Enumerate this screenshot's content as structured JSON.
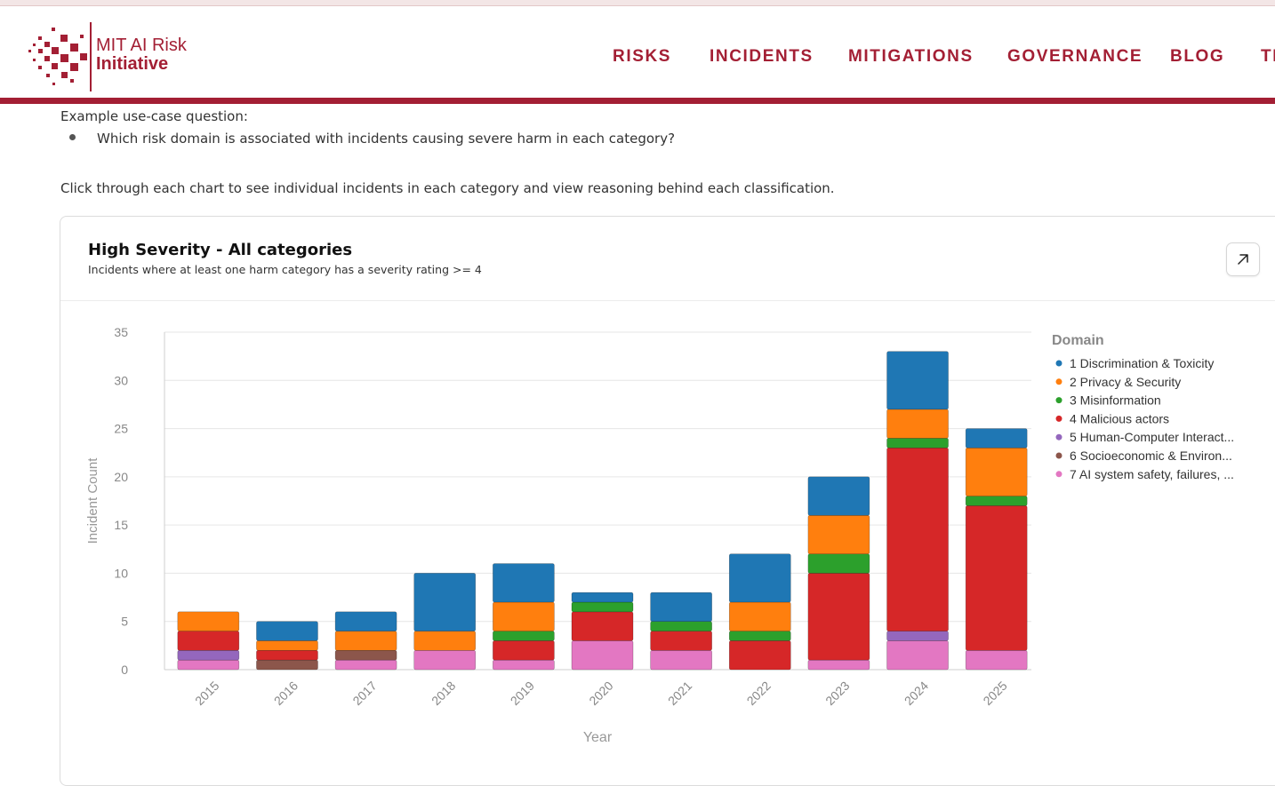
{
  "brand": {
    "line1": "MIT AI Risk",
    "line2": "Initiative",
    "color": "#a31f34"
  },
  "nav": [
    {
      "label": "RISKS"
    },
    {
      "label": "INCIDENTS"
    },
    {
      "label": "MITIGATIONS"
    },
    {
      "label": "GOVERNANCE"
    },
    {
      "label": "BLOG"
    },
    {
      "label": "TI"
    }
  ],
  "intro": {
    "label": "Example use-case question:",
    "question": "Which risk domain is associated with incidents causing severe harm in each category?",
    "instruction": "Click through each chart to see individual incidents in each category and view reasoning behind each classification."
  },
  "card": {
    "title": "High Severity - All categories",
    "subtitle": "Incidents where at least one harm category has a severity rating >= 4",
    "expand_icon": "arrow-up-right-icon"
  },
  "chart_data": {
    "type": "bar",
    "stacked": true,
    "xlabel": "Year",
    "ylabel": "Incident Count",
    "ylim": [
      0,
      35
    ],
    "yticks": [
      0,
      5,
      10,
      15,
      20,
      25,
      30,
      35
    ],
    "grid": true,
    "legend_title": "Domain",
    "legend_position": "right",
    "categories": [
      "2015",
      "2016",
      "2017",
      "2018",
      "2019",
      "2020",
      "2021",
      "2022",
      "2023",
      "2024",
      "2025"
    ],
    "series": [
      {
        "name": "7 AI system safety, failures, ...",
        "color": "#e377c2",
        "values": [
          1,
          0,
          1,
          2,
          1,
          3,
          2,
          0,
          1,
          3,
          2
        ]
      },
      {
        "name": "6 Socioeconomic & Environ...",
        "color": "#8c564b",
        "values": [
          0,
          1,
          1,
          0,
          0,
          0,
          0,
          0,
          0,
          0,
          0
        ]
      },
      {
        "name": "5 Human-Computer Interact...",
        "color": "#9467bd",
        "values": [
          1,
          0,
          0,
          0,
          0,
          0,
          0,
          0,
          0,
          1,
          0
        ]
      },
      {
        "name": "4 Malicious actors",
        "color": "#d62728",
        "values": [
          2,
          1,
          0,
          0,
          2,
          3,
          2,
          3,
          9,
          19,
          15
        ]
      },
      {
        "name": "3 Misinformation",
        "color": "#2ca02c",
        "values": [
          0,
          0,
          0,
          0,
          1,
          1,
          1,
          1,
          2,
          1,
          1
        ]
      },
      {
        "name": "2 Privacy & Security",
        "color": "#ff7f0e",
        "values": [
          2,
          1,
          2,
          2,
          3,
          0,
          0,
          3,
          4,
          3,
          5
        ]
      },
      {
        "name": "1 Discrimination & Toxicity",
        "color": "#1f77b4",
        "values": [
          0,
          2,
          2,
          6,
          4,
          1,
          3,
          5,
          4,
          6,
          2
        ]
      }
    ],
    "legend_order": [
      6,
      5,
      4,
      3,
      2,
      1,
      0
    ]
  }
}
